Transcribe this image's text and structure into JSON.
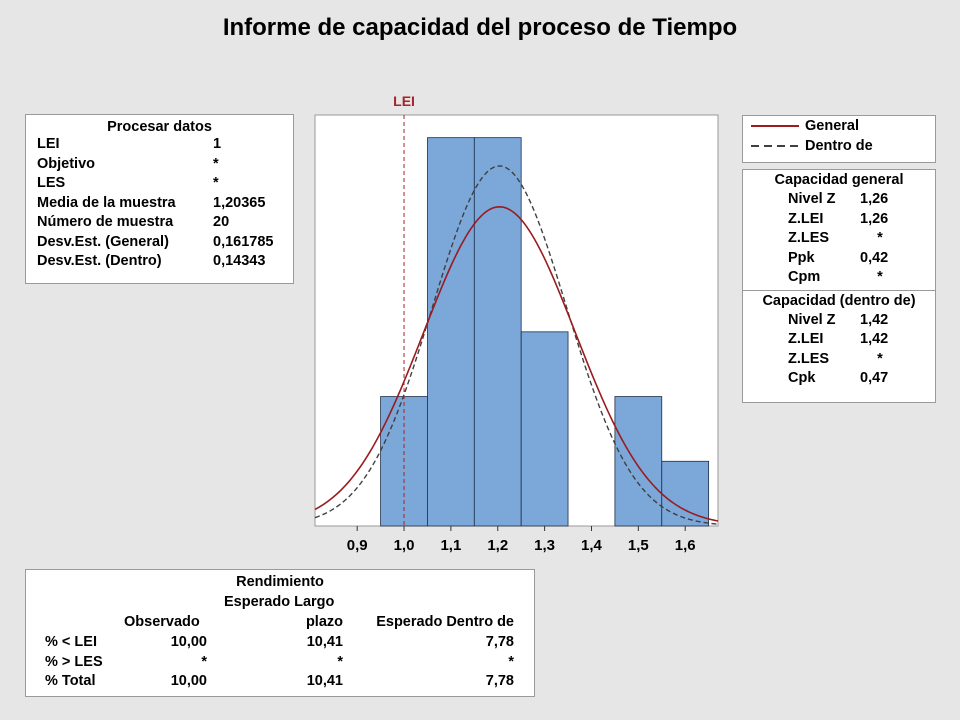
{
  "title": "Informe de capacidad del proceso de Tiempo",
  "process_data": {
    "header": "Procesar datos",
    "rows": [
      {
        "label": "LEI",
        "value": "1"
      },
      {
        "label": "Objetivo",
        "value": "*"
      },
      {
        "label": "LES",
        "value": "*"
      },
      {
        "label": "Media de la muestra",
        "value": "1,20365"
      },
      {
        "label": "Número de muestra",
        "value": "20"
      },
      {
        "label": "Desv.Est. (General)",
        "value": "0,161785"
      },
      {
        "label": "Desv.Est. (Dentro)",
        "value": "0,14343"
      }
    ]
  },
  "legend": {
    "general": "General",
    "within": "Dentro de"
  },
  "overall_capability": {
    "header": "Capacidad general",
    "rows": [
      {
        "label": "Nivel Z",
        "value": "1,26"
      },
      {
        "label": "Z.LEI",
        "value": "1,26"
      },
      {
        "label": "Z.LES",
        "value": "*"
      },
      {
        "label": "Ppk",
        "value": "0,42"
      },
      {
        "label": "Cpm",
        "value": "*"
      }
    ]
  },
  "within_capability": {
    "header": "Capacidad (dentro de)",
    "rows": [
      {
        "label": "Nivel Z",
        "value": "1,42"
      },
      {
        "label": "Z.LEI",
        "value": "1,42"
      },
      {
        "label": "Z.LES",
        "value": "*"
      },
      {
        "label": "Cpk",
        "value": "0,47"
      }
    ]
  },
  "yield": {
    "title": "Rendimiento",
    "col_observed": "Observado",
    "col_expected_long_1": "Esperado Largo",
    "col_expected_long_2": "plazo",
    "col_expected_within": "Esperado Dentro de",
    "rows": [
      {
        "label": "% < LEI",
        "observed": "10,00",
        "long": "10,41",
        "within": "7,78"
      },
      {
        "label": "% > LES",
        "observed": "*",
        "long": "*",
        "within": "*"
      },
      {
        "label": "% Total",
        "observed": "10,00",
        "long": "10,41",
        "within": "7,78"
      }
    ]
  },
  "chart_data": {
    "type": "histogram",
    "xlim": [
      0.81,
      1.67
    ],
    "ticks": [
      0.9,
      1.0,
      1.1,
      1.2,
      1.3,
      1.4,
      1.5,
      1.6
    ],
    "tick_labels": [
      "0,9",
      "1,0",
      "1,1",
      "1,2",
      "1,3",
      "1,4",
      "1,5",
      "1,6"
    ],
    "bin_edges": [
      0.95,
      1.05,
      1.15,
      1.25,
      1.35,
      1.45,
      1.55,
      1.65
    ],
    "counts": [
      2,
      6,
      6,
      3,
      0,
      2,
      1
    ],
    "lsl": 1.0,
    "lsl_label": "LEI",
    "mean": 1.20365,
    "sd_overall": 0.161785,
    "sd_within": 0.14343,
    "n": 20,
    "bin_width": 0.1,
    "colors": {
      "bar": "#7ba7d9",
      "bar_edge": "#1c2f4a",
      "overall": "#9a1c1f",
      "within": "#404040",
      "lsl": "#a8232a"
    }
  }
}
